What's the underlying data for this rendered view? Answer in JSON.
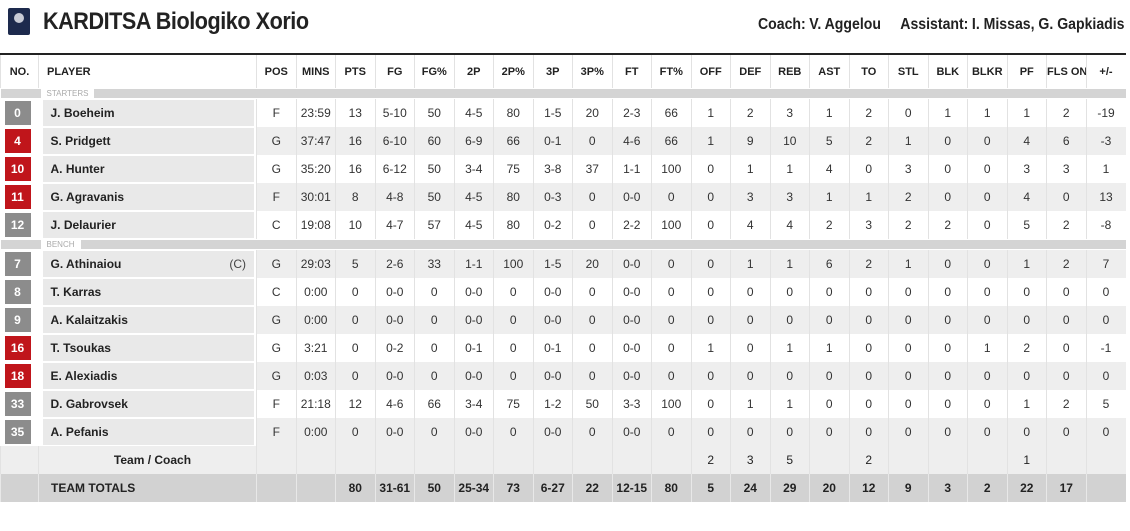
{
  "team": {
    "name": "KARDITSA Biologiko Xorio",
    "coach_label": "Coach:",
    "coach": "V. Aggelou",
    "assistant_label": "Assistant:",
    "assistants": "I. Missas, G. Gapkiadis"
  },
  "colors": {
    "red_badge": "#c0151b",
    "gray_badge": "#8c8c8c"
  },
  "columns": [
    "NO.",
    "PLAYER",
    "POS",
    "MINS",
    "PTS",
    "FG",
    "FG%",
    "2P",
    "2P%",
    "3P",
    "3P%",
    "FT",
    "FT%",
    "OFF",
    "DEF",
    "REB",
    "AST",
    "TO",
    "STL",
    "BLK",
    "BLKR",
    "PF",
    "FLS ON",
    "+/-"
  ],
  "sections": {
    "starters": "STARTERS",
    "bench": "BENCH"
  },
  "starters": [
    {
      "no": "0",
      "badge": "gray",
      "name": "J. Boeheim",
      "cap": "",
      "stats": [
        "F",
        "23:59",
        "13",
        "5-10",
        "50",
        "4-5",
        "80",
        "1-5",
        "20",
        "2-3",
        "66",
        "1",
        "2",
        "3",
        "1",
        "2",
        "0",
        "1",
        "1",
        "1",
        "2",
        "-19"
      ]
    },
    {
      "no": "4",
      "badge": "red",
      "name": "S. Pridgett",
      "cap": "",
      "stats": [
        "G",
        "37:47",
        "16",
        "6-10",
        "60",
        "6-9",
        "66",
        "0-1",
        "0",
        "4-6",
        "66",
        "1",
        "9",
        "10",
        "5",
        "2",
        "1",
        "0",
        "0",
        "4",
        "6",
        "-3"
      ]
    },
    {
      "no": "10",
      "badge": "red",
      "name": "A. Hunter",
      "cap": "",
      "stats": [
        "G",
        "35:20",
        "16",
        "6-12",
        "50",
        "3-4",
        "75",
        "3-8",
        "37",
        "1-1",
        "100",
        "0",
        "1",
        "1",
        "4",
        "0",
        "3",
        "0",
        "0",
        "3",
        "3",
        "1"
      ]
    },
    {
      "no": "11",
      "badge": "red",
      "name": "G. Agravanis",
      "cap": "",
      "stats": [
        "F",
        "30:01",
        "8",
        "4-8",
        "50",
        "4-5",
        "80",
        "0-3",
        "0",
        "0-0",
        "0",
        "0",
        "3",
        "3",
        "1",
        "1",
        "2",
        "0",
        "0",
        "4",
        "0",
        "13"
      ]
    },
    {
      "no": "12",
      "badge": "gray",
      "name": "J. Delaurier",
      "cap": "",
      "stats": [
        "C",
        "19:08",
        "10",
        "4-7",
        "57",
        "4-5",
        "80",
        "0-2",
        "0",
        "2-2",
        "100",
        "0",
        "4",
        "4",
        "2",
        "3",
        "2",
        "2",
        "0",
        "5",
        "2",
        "-8"
      ]
    }
  ],
  "bench": [
    {
      "no": "7",
      "badge": "gray",
      "name": "G. Athinaiou",
      "cap": "(C)",
      "stats": [
        "G",
        "29:03",
        "5",
        "2-6",
        "33",
        "1-1",
        "100",
        "1-5",
        "20",
        "0-0",
        "0",
        "0",
        "1",
        "1",
        "6",
        "2",
        "1",
        "0",
        "0",
        "1",
        "2",
        "7"
      ]
    },
    {
      "no": "8",
      "badge": "gray",
      "name": "T. Karras",
      "cap": "",
      "stats": [
        "C",
        "0:00",
        "0",
        "0-0",
        "0",
        "0-0",
        "0",
        "0-0",
        "0",
        "0-0",
        "0",
        "0",
        "0",
        "0",
        "0",
        "0",
        "0",
        "0",
        "0",
        "0",
        "0",
        "0"
      ]
    },
    {
      "no": "9",
      "badge": "gray",
      "name": "A. Kalaitzakis",
      "cap": "",
      "stats": [
        "G",
        "0:00",
        "0",
        "0-0",
        "0",
        "0-0",
        "0",
        "0-0",
        "0",
        "0-0",
        "0",
        "0",
        "0",
        "0",
        "0",
        "0",
        "0",
        "0",
        "0",
        "0",
        "0",
        "0"
      ]
    },
    {
      "no": "16",
      "badge": "red",
      "name": "T. Tsoukas",
      "cap": "",
      "stats": [
        "G",
        "3:21",
        "0",
        "0-2",
        "0",
        "0-1",
        "0",
        "0-1",
        "0",
        "0-0",
        "0",
        "1",
        "0",
        "1",
        "1",
        "0",
        "0",
        "0",
        "1",
        "2",
        "0",
        "-1"
      ]
    },
    {
      "no": "18",
      "badge": "red",
      "name": "E. Alexiadis",
      "cap": "",
      "stats": [
        "G",
        "0:03",
        "0",
        "0-0",
        "0",
        "0-0",
        "0",
        "0-0",
        "0",
        "0-0",
        "0",
        "0",
        "0",
        "0",
        "0",
        "0",
        "0",
        "0",
        "0",
        "0",
        "0",
        "0"
      ]
    },
    {
      "no": "33",
      "badge": "gray",
      "name": "D. Gabrovsek",
      "cap": "",
      "stats": [
        "F",
        "21:18",
        "12",
        "4-6",
        "66",
        "3-4",
        "75",
        "1-2",
        "50",
        "3-3",
        "100",
        "0",
        "1",
        "1",
        "0",
        "0",
        "0",
        "0",
        "0",
        "1",
        "2",
        "5"
      ]
    },
    {
      "no": "35",
      "badge": "gray",
      "name": "A. Pefanis",
      "cap": "",
      "stats": [
        "F",
        "0:00",
        "0",
        "0-0",
        "0",
        "0-0",
        "0",
        "0-0",
        "0",
        "0-0",
        "0",
        "0",
        "0",
        "0",
        "0",
        "0",
        "0",
        "0",
        "0",
        "0",
        "0",
        "0"
      ]
    }
  ],
  "team_coach": {
    "name": "Team / Coach",
    "stats": [
      "",
      "",
      "",
      "",
      "",
      "",
      "",
      "",
      "",
      "",
      "",
      "2",
      "3",
      "5",
      "",
      "2",
      "",
      "",
      "",
      "1",
      "",
      ""
    ]
  },
  "totals": {
    "name": "TEAM TOTALS",
    "stats": [
      "",
      "",
      "80",
      "31-61",
      "50",
      "25-34",
      "73",
      "6-27",
      "22",
      "12-15",
      "80",
      "5",
      "24",
      "29",
      "20",
      "12",
      "9",
      "3",
      "2",
      "22",
      "17",
      ""
    ]
  }
}
